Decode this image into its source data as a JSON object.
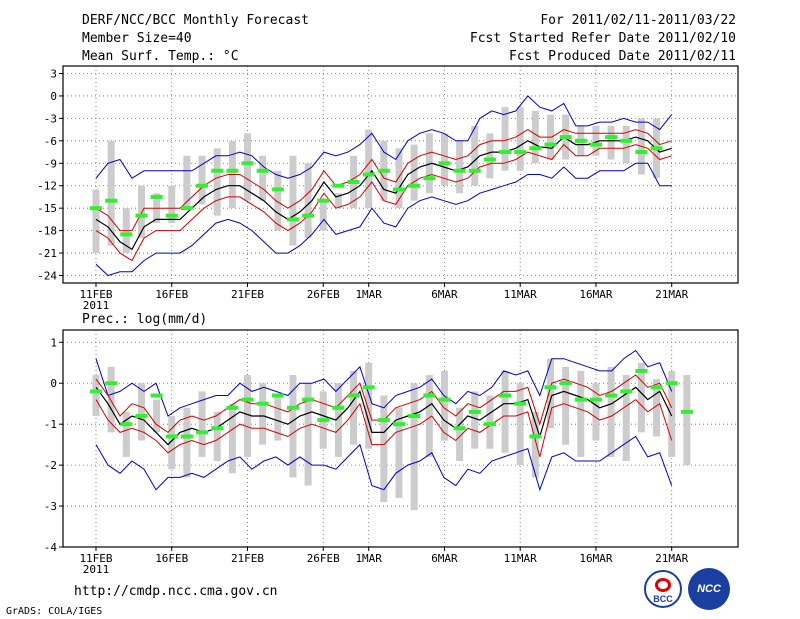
{
  "header": {
    "title": "DERF/NCC/BCC Monthly Forecast",
    "member_size": "Member Size=40",
    "variable_top": "Mean Surf. Temp.: °C",
    "period": "For 2011/02/11-2011/03/22",
    "started": "Fcst Started Refer Date 2011/02/10",
    "produced": "Fcst Produced Date 2011/02/11"
  },
  "footer": {
    "url": "http://cmdp.ncc.cma.gov.cn",
    "credit": "GrADS: COLA/IGES",
    "logo_bcc": "BCC",
    "logo_ncc": "NCC"
  },
  "colors": {
    "mean": "#000000",
    "spread": "#d40000",
    "envelope": "#0000cc",
    "observed": "#33ee33",
    "box": "#cccccc",
    "grid": "#666666"
  },
  "chart_data": [
    {
      "type": "line",
      "title": "Mean Surf. Temp.: °C",
      "x_tick_labels": [
        "11FEB",
        "16FEB",
        "21FEB",
        "26FEB",
        "1MAR",
        "6MAR",
        "11MAR",
        "16MAR",
        "21MAR"
      ],
      "x_tick_days": [
        0,
        5,
        10,
        15,
        18,
        23,
        28,
        33,
        38
      ],
      "year_label": "2011",
      "ylim": [
        -25,
        4
      ],
      "y_ticks": [
        3,
        0,
        -3,
        -6,
        -9,
        -12,
        -15,
        -18,
        -21,
        -24
      ],
      "days": 40,
      "series": [
        {
          "name": "ensemble mean",
          "values": [
            -16.5,
            -17.5,
            -19.5,
            -20.5,
            -17.5,
            -16.5,
            -16.5,
            -16.5,
            -15,
            -13.5,
            -12.5,
            -12,
            -12,
            -13,
            -14,
            -15.5,
            -16.5,
            -15.5,
            -14,
            -11.5,
            -13.5,
            -13,
            -12,
            -10,
            -12.5,
            -13,
            -10.5,
            -9.5,
            -9,
            -9.5,
            -10,
            -9.5,
            -8,
            -7.5,
            -7.5,
            -7,
            -6,
            -6.8,
            -7,
            -5.5,
            -6.5,
            -6.5,
            -6,
            -6,
            -6,
            -5.5,
            -6,
            -7.5,
            -7
          ]
        },
        {
          "name": "spread upper",
          "values": [
            -15,
            -16,
            -18,
            -18,
            -15,
            -15,
            -15,
            -15,
            -13.5,
            -12,
            -11,
            -10.5,
            -10.5,
            -11.5,
            -12.5,
            -14,
            -15,
            -14,
            -12.5,
            -10,
            -12,
            -11.5,
            -10.5,
            -8.5,
            -11,
            -11.5,
            -9,
            -8,
            -7.5,
            -8,
            -8.5,
            -8,
            -6.5,
            -6,
            -6,
            -5.5,
            -4.5,
            -5.5,
            -5.5,
            -4.5,
            -5,
            -5,
            -5,
            -5,
            -5,
            -4.5,
            -5,
            -6.5,
            -6
          ]
        },
        {
          "name": "spread lower",
          "values": [
            -18,
            -19,
            -21,
            -22,
            -19,
            -18,
            -18,
            -18,
            -16.5,
            -15,
            -14,
            -13.5,
            -13.5,
            -14.5,
            -15.5,
            -17,
            -18,
            -17,
            -15.5,
            -13,
            -15,
            -14.5,
            -13.5,
            -11.5,
            -14,
            -14.5,
            -12,
            -11,
            -10.5,
            -11,
            -11.5,
            -11,
            -9.5,
            -9,
            -9,
            -8.5,
            -7.5,
            -8,
            -8.5,
            -6.5,
            -8,
            -8,
            -7,
            -7,
            -7,
            -6.5,
            -7,
            -8.5,
            -8
          ]
        },
        {
          "name": "envelope max",
          "values": [
            -11,
            -9,
            -8.5,
            -11,
            -10,
            -10,
            -10,
            -10,
            -10,
            -9,
            -8,
            -8,
            -7.5,
            -8,
            -9.5,
            -10.5,
            -11,
            -10.5,
            -9.5,
            -7.5,
            -8,
            -7.5,
            -6.5,
            -5,
            -7.5,
            -8.5,
            -6,
            -5,
            -4.5,
            -5,
            -6,
            -6,
            -3,
            -2,
            -2.5,
            -2,
            0,
            -1.5,
            -2,
            -1,
            -4,
            -4,
            -3.5,
            -3.5,
            -3,
            -3.5,
            -3.5,
            -4.5,
            -2.5
          ]
        },
        {
          "name": "envelope min",
          "values": [
            -22.5,
            -24,
            -23.5,
            -23.5,
            -22,
            -21,
            -21,
            -21,
            -20,
            -18.5,
            -17,
            -16.5,
            -17,
            -18,
            -19.5,
            -21,
            -21,
            -20,
            -18.5,
            -16.5,
            -18.5,
            -18,
            -17.5,
            -15,
            -17,
            -17.5,
            -15,
            -14,
            -13.5,
            -14,
            -14.5,
            -14,
            -13,
            -12.5,
            -12,
            -11.5,
            -10.5,
            -10.5,
            -11,
            -9.5,
            -11,
            -11,
            -10,
            -10,
            -10,
            -9,
            -9,
            -12,
            -12
          ]
        },
        {
          "name": "observed",
          "values": [
            -15,
            -14,
            -18.5,
            -16,
            -13.5,
            -16,
            -15,
            -12,
            -10,
            -10,
            -9,
            -10,
            -12.5,
            -16.5,
            -16,
            -14,
            -12,
            -11.5,
            -10.5,
            -10,
            -12.5,
            -12,
            -11,
            -9,
            -10,
            -10,
            -8.5,
            -7.5,
            -7.5,
            -7,
            -6.5,
            -5.5,
            -6,
            -6.5,
            -5.5,
            -6,
            -7.5,
            -7
          ]
        },
        {
          "name": "member box upper",
          "values": [
            -12.5,
            -6,
            -15,
            -12,
            -13,
            -12,
            -8,
            -8,
            -7,
            -6,
            -5,
            -8,
            -10,
            -8,
            -9,
            -14,
            -13,
            -8,
            -4.5,
            -6,
            -7,
            -6.5,
            -5,
            -5,
            -6,
            -4,
            -5,
            -1.5,
            -1.5,
            -2,
            -2.5,
            -2.5,
            -4,
            -4,
            -4,
            -4,
            -3,
            -3,
            -1.5
          ]
        },
        {
          "name": "member box lower",
          "values": [
            -21,
            -20,
            -21,
            -19,
            -17,
            -17,
            -15,
            -14.5,
            -16,
            -15,
            -14,
            -14,
            -18,
            -20,
            -19,
            -18,
            -15,
            -15,
            -15,
            -14,
            -15,
            -14,
            -13,
            -12,
            -13,
            -12,
            -11,
            -10,
            -10,
            -9,
            -8.5,
            -8.5,
            -8,
            -8,
            -8.5,
            -9,
            -10.5,
            -11
          ]
        }
      ]
    },
    {
      "type": "line",
      "title": "Prec.: log(mm/d)",
      "x_tick_labels": [
        "11FEB",
        "16FEB",
        "21FEB",
        "26FEB",
        "1MAR",
        "6MAR",
        "11MAR",
        "16MAR",
        "21MAR"
      ],
      "x_tick_days": [
        0,
        5,
        10,
        15,
        18,
        23,
        28,
        33,
        38
      ],
      "year_label": "2011",
      "ylim": [
        -4,
        1.3
      ],
      "y_ticks": [
        1,
        0,
        -1,
        -2,
        -3,
        -4
      ],
      "days": 40,
      "series": [
        {
          "name": "ensemble mean",
          "values": [
            -0.1,
            -0.5,
            -1,
            -0.8,
            -0.9,
            -1.2,
            -1.5,
            -1.2,
            -1.1,
            -1.2,
            -1.1,
            -0.9,
            -0.7,
            -0.8,
            -0.8,
            -0.9,
            -1,
            -0.8,
            -0.7,
            -0.8,
            -0.9,
            -0.6,
            -0.2,
            -1.2,
            -1.2,
            -0.9,
            -0.8,
            -0.7,
            -0.5,
            -0.9,
            -1.1,
            -0.8,
            -0.9,
            -0.7,
            -0.5,
            -0.5,
            -0.4,
            -1.3,
            -0.3,
            -0.2,
            -0.3,
            -0.4,
            -0.6,
            -0.5,
            -0.3,
            -0.1,
            -0.4,
            -0.2,
            -0.8
          ]
        },
        {
          "name": "spread upper",
          "values": [
            0.1,
            -0.3,
            -0.8,
            -0.5,
            -0.6,
            -1,
            -1.2,
            -0.9,
            -0.8,
            -0.9,
            -0.8,
            -0.6,
            -0.4,
            -0.5,
            -0.5,
            -0.6,
            -0.7,
            -0.5,
            -0.4,
            -0.5,
            -0.6,
            -0.3,
            0,
            -0.9,
            -0.9,
            -0.6,
            -0.5,
            -0.4,
            -0.2,
            -0.6,
            -0.8,
            -0.5,
            -0.6,
            -0.4,
            -0.2,
            -0.2,
            -0.1,
            -1,
            0,
            0.1,
            0,
            -0.1,
            -0.3,
            -0.2,
            0,
            0.2,
            -0.1,
            0,
            -0.6
          ]
        },
        {
          "name": "spread lower",
          "values": [
            -0.4,
            -0.9,
            -1.2,
            -1.1,
            -1.2,
            -1.4,
            -1.7,
            -1.5,
            -1.4,
            -1.5,
            -1.4,
            -1.2,
            -1,
            -1.1,
            -1.1,
            -1.2,
            -1.3,
            -1.1,
            -1,
            -1.1,
            -1.2,
            -0.9,
            -0.5,
            -1.5,
            -1.5,
            -1.2,
            -1.1,
            -1,
            -0.8,
            -1.2,
            -1.4,
            -1.1,
            -1.2,
            -1,
            -0.8,
            -0.8,
            -0.7,
            -1.8,
            -0.6,
            -0.5,
            -0.6,
            -0.7,
            -0.9,
            -0.8,
            -0.6,
            -0.4,
            -0.7,
            -0.5,
            -1.4
          ]
        },
        {
          "name": "envelope max",
          "values": [
            0.6,
            -0.3,
            -0.2,
            0,
            -0.2,
            0,
            -0.8,
            -0.6,
            -0.5,
            -0.4,
            -0.3,
            -0.3,
            0,
            -0.2,
            -0.1,
            -0.2,
            -0.3,
            0,
            0,
            0.1,
            -0.2,
            0.1,
            0.4,
            -0.5,
            -0.6,
            -0.3,
            -0.2,
            -0.1,
            0.1,
            -0.3,
            -0.5,
            -0.2,
            -0.3,
            -0.1,
            0.3,
            0.2,
            0.3,
            -0.3,
            0.6,
            0.6,
            0.5,
            0.4,
            0.3,
            0.3,
            0.6,
            0.8,
            0.4,
            0.5,
            -0.2
          ]
        },
        {
          "name": "envelope min",
          "values": [
            -1.5,
            -2,
            -2.2,
            -1.9,
            -2.1,
            -2.6,
            -2.3,
            -2.3,
            -2.2,
            -2.3,
            -2.1,
            -1.9,
            -1.8,
            -2.1,
            -1.9,
            -1.8,
            -2,
            -1.8,
            -2,
            -2,
            -2.1,
            -1.8,
            -1.5,
            -2.5,
            -2.6,
            -2.2,
            -2,
            -1.9,
            -1.7,
            -2.3,
            -2.5,
            -2.1,
            -2.2,
            -1.9,
            -1.8,
            -1.7,
            -1.6,
            -2.6,
            -1.8,
            -1.7,
            -1.9,
            -1.9,
            -1.9,
            -1.7,
            -1.5,
            -1.3,
            -1.8,
            -1.7,
            -2.5
          ]
        },
        {
          "name": "observed",
          "values": [
            -0.2,
            0,
            -1,
            -0.8,
            -0.3,
            -1.3,
            -1.3,
            -1.2,
            -1.1,
            -0.6,
            -0.4,
            -0.5,
            -0.3,
            -0.6,
            -0.4,
            -0.9,
            -0.6,
            -0.3,
            -0.1,
            -0.9,
            -1,
            -0.8,
            -0.3,
            -0.4,
            -1.1,
            -0.7,
            -1,
            -0.3,
            -0.5,
            -1.3,
            -0.1,
            0,
            -0.4,
            -0.4,
            -0.3,
            -0.2,
            0.3,
            -0.1,
            0,
            -0.7
          ]
        },
        {
          "name": "member box upper",
          "values": [
            0.2,
            0.4,
            -0.7,
            0,
            -0.4,
            -0.8,
            -0.6,
            -0.2,
            -0.7,
            -0.5,
            0.2,
            0,
            -0.3,
            0.2,
            0,
            -0.2,
            0,
            0.3,
            0.5,
            -0.3,
            -0.6,
            0,
            0.2,
            0.3,
            -0.6,
            -0.2,
            -0.3,
            0.3,
            0,
            -0.7,
            0.6,
            0.4,
            0.3,
            0,
            0.4,
            0.2,
            0.5,
            0.1,
            0.3,
            0.2
          ]
        },
        {
          "name": "member box lower",
          "values": [
            -0.8,
            -1.2,
            -1.8,
            -1.4,
            -1.2,
            -2.1,
            -2.3,
            -1.8,
            -1.9,
            -2.2,
            -1.8,
            -1.5,
            -1.4,
            -2.3,
            -2.5,
            -1.6,
            -1.8,
            -1.5,
            -1.6,
            -2.9,
            -2.8,
            -3.1,
            -1.8,
            -1.4,
            -1.9,
            -1.6,
            -1.6,
            -1.7,
            -2,
            -2.3,
            -1.1,
            -1.5,
            -1.8,
            -1.4,
            -1.8,
            -1.9,
            -1.2,
            -1.3,
            -1.8,
            -2
          ]
        }
      ]
    }
  ]
}
